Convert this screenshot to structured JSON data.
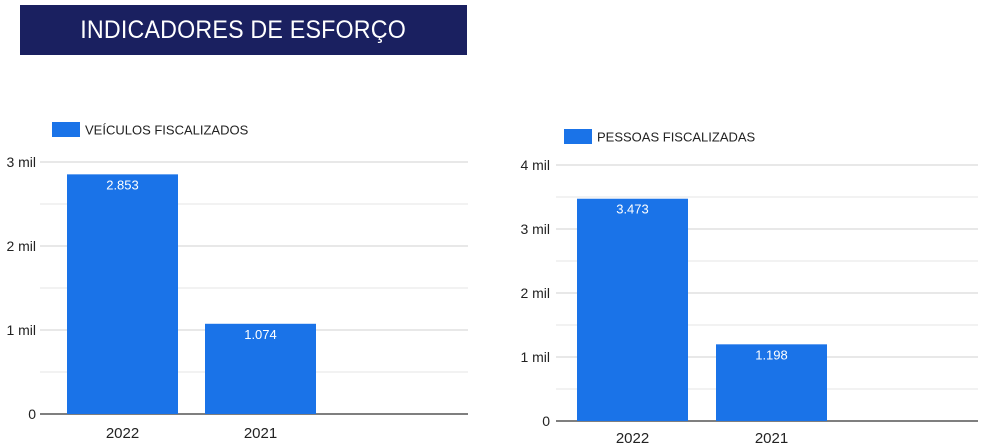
{
  "banner": {
    "title": "INDICADORES DE ESFORÇO",
    "background": "#1a2060"
  },
  "chart_data": [
    {
      "type": "bar",
      "title": "",
      "xlabel": "",
      "ylabel": "",
      "categories": [
        "2022",
        "2021"
      ],
      "series": [
        {
          "name": "VEÍCULOS FISCALIZADOS",
          "values": [
            2853,
            1074
          ],
          "labels": [
            "2.853",
            "1.074"
          ],
          "color": "#1a73e8"
        }
      ],
      "ylim": [
        0,
        3000
      ],
      "yticks": [
        {
          "value": 0,
          "label": "0"
        },
        {
          "value": 1000,
          "label": "1 mil"
        },
        {
          "value": 2000,
          "label": "2 mil"
        },
        {
          "value": 3000,
          "label": "3 mil"
        }
      ],
      "minor_gridlines": [
        500,
        1500,
        2500
      ],
      "grid": true,
      "legend": "top-left"
    },
    {
      "type": "bar",
      "title": "",
      "xlabel": "",
      "ylabel": "",
      "categories": [
        "2022",
        "2021"
      ],
      "series": [
        {
          "name": "PESSOAS FISCALIZADAS",
          "values": [
            3473,
            1198
          ],
          "labels": [
            "3.473",
            "1.198"
          ],
          "color": "#1a73e8"
        }
      ],
      "ylim": [
        0,
        4000
      ],
      "yticks": [
        {
          "value": 0,
          "label": "0"
        },
        {
          "value": 1000,
          "label": "1 mil"
        },
        {
          "value": 2000,
          "label": "2 mil"
        },
        {
          "value": 3000,
          "label": "3 mil"
        },
        {
          "value": 4000,
          "label": "4 mil"
        }
      ],
      "minor_gridlines": [
        500,
        1500,
        2500,
        3500
      ],
      "grid": true,
      "legend": "top-left"
    }
  ]
}
